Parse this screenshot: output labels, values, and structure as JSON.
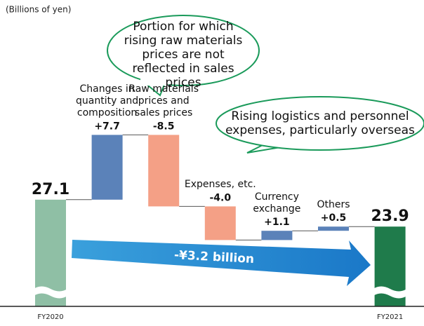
{
  "chart_data": {
    "type": "waterfall",
    "unit_label": "(Billions of yen)",
    "categories": [
      "FY2020",
      "Changes in quantity and composition",
      "Raw materials prices and sales prices",
      "Expenses, etc.",
      "Currency exchange",
      "Others",
      "FY2021"
    ],
    "values": [
      27.1,
      7.7,
      -8.5,
      -4.0,
      1.1,
      0.5,
      23.9
    ],
    "value_labels": [
      "27.1",
      "+7.7",
      "-8.5",
      "-4.0",
      "+1.1",
      "+0.5",
      "23.9"
    ],
    "colors": {
      "start": "#8fbfa5",
      "increase": "#5b82b9",
      "decrease": "#f4a086",
      "end": "#1f7b4b"
    },
    "annotations": [
      "Portion for which rising raw materials prices are not reflected in sales prices",
      "Rising logistics and personnel expenses, particularly overseas"
    ],
    "change_label": "-¥3.2 billion"
  }
}
